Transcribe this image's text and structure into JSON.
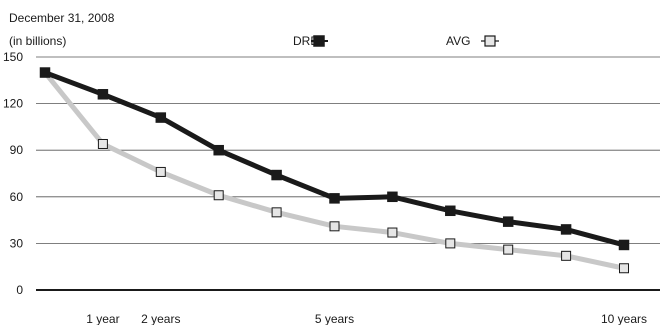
{
  "chart_data": {
    "type": "line",
    "title_line1": "December 31, 2008",
    "title_line2": "(in billions)",
    "x": [
      0,
      1,
      2,
      3,
      4,
      5,
      6,
      7,
      8,
      9,
      10
    ],
    "x_tick_labels": [
      {
        "x": 1,
        "label": "1 year"
      },
      {
        "x": 2,
        "label": "2 years"
      },
      {
        "x": 5,
        "label": "5 years"
      },
      {
        "x": 10,
        "label": "10 years"
      }
    ],
    "y_ticks": [
      0,
      30,
      60,
      90,
      120,
      150
    ],
    "ylim": [
      0,
      150
    ],
    "xlim": [
      0,
      10
    ],
    "grid": true,
    "legend_position": "top-center",
    "series": [
      {
        "name": "DRE",
        "color": "#1a1a1a",
        "marker_fill": "#1a1a1a",
        "values": [
          140,
          126,
          111,
          90,
          74,
          59,
          60,
          51,
          44,
          39,
          29
        ]
      },
      {
        "name": "AVG",
        "color": "#c8c8c8",
        "marker_fill": "#e6e6e6",
        "values": [
          140,
          94,
          76,
          61,
          50,
          41,
          37,
          30,
          26,
          22,
          14
        ]
      }
    ]
  }
}
